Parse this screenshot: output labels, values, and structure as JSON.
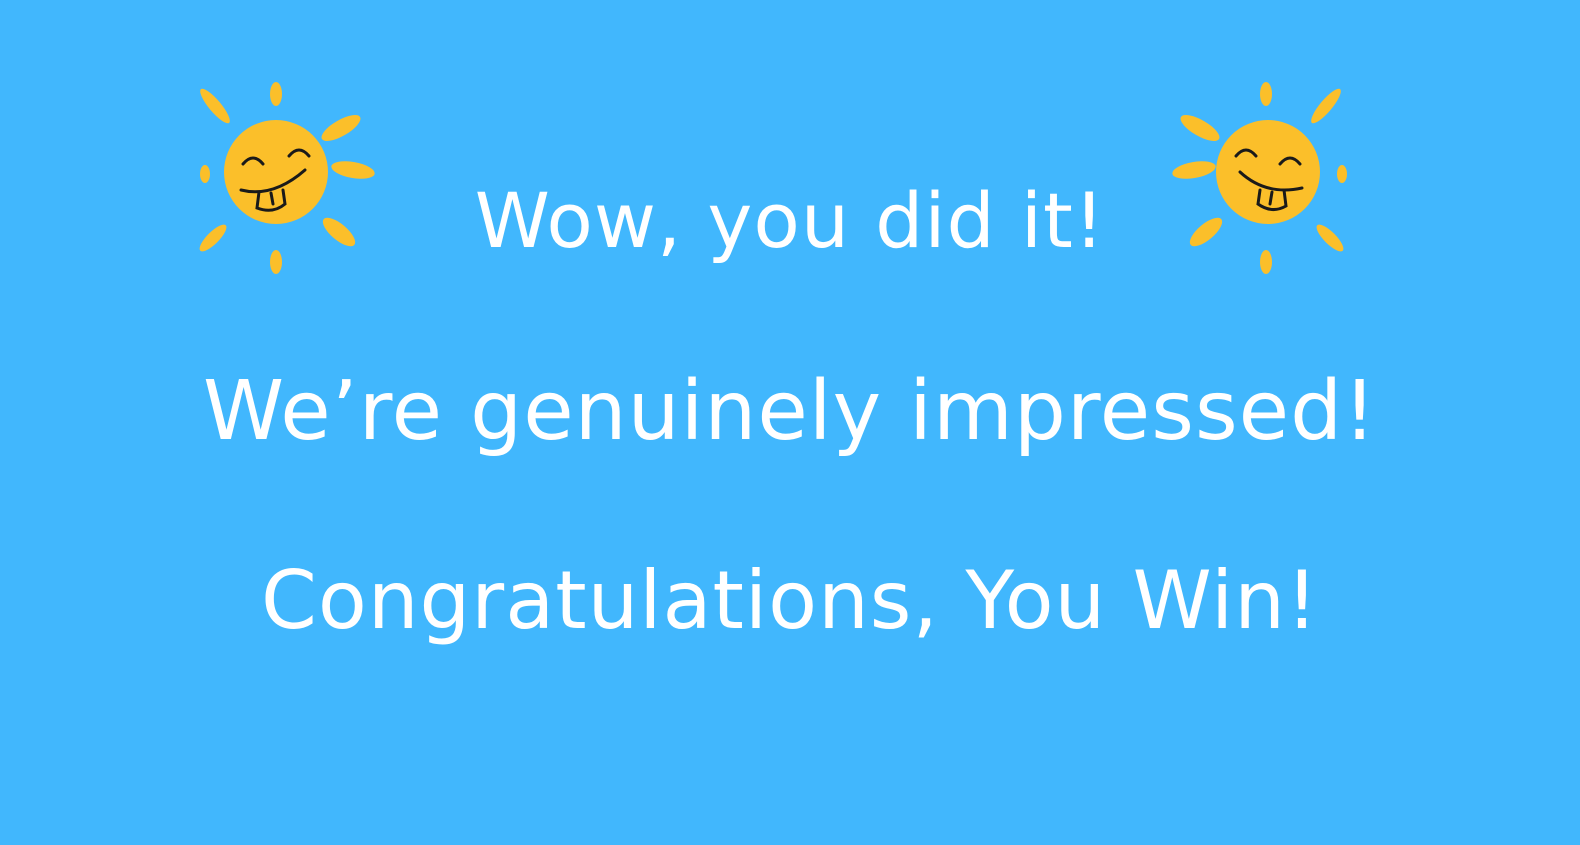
{
  "screen": {
    "background_color": "#41b7fd",
    "text_color": "#ffffff",
    "sun_color": "#fbbf2a"
  },
  "icons": {
    "left": "smiling-sun-icon",
    "right": "smiling-sun-icon"
  },
  "messages": {
    "line1": "Wow, you did it!",
    "line2": "We’re genuinely impressed!",
    "line3": "Congratulations, You Win!"
  }
}
